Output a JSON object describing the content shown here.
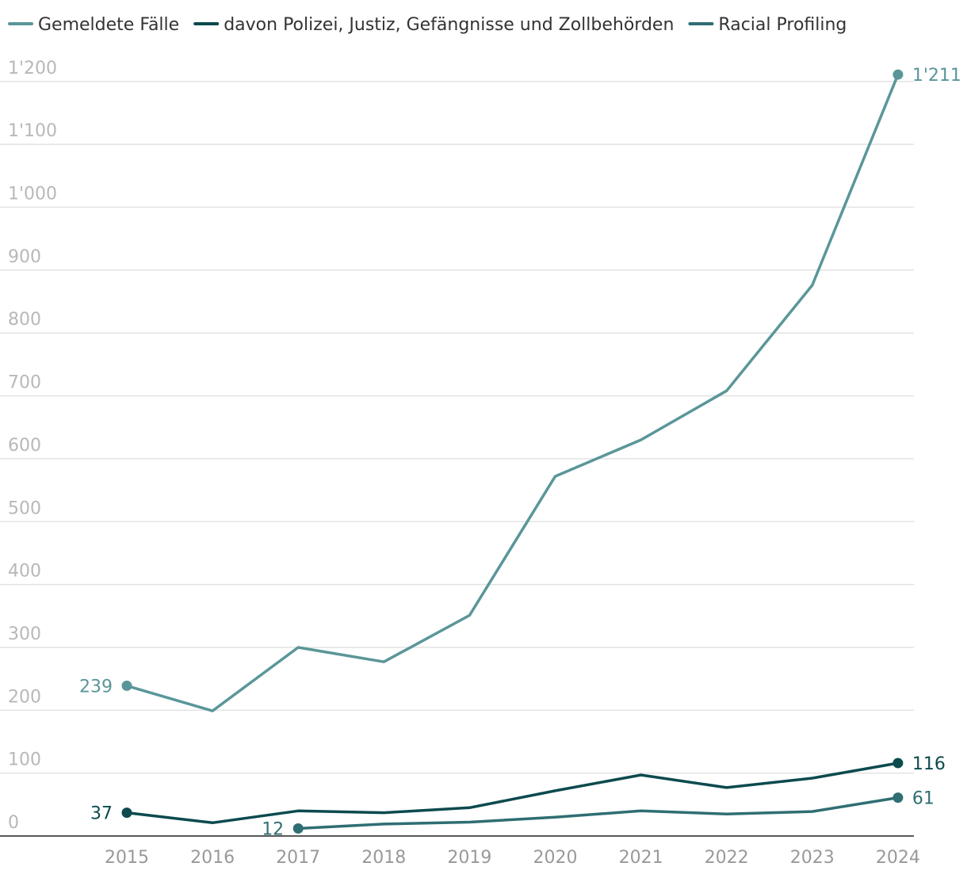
{
  "chart_data": {
    "type": "line",
    "title": "",
    "xlabel": "",
    "ylabel": "",
    "x": [
      "2015",
      "2016",
      "2017",
      "2018",
      "2019",
      "2020",
      "2021",
      "2022",
      "2023",
      "2024"
    ],
    "ylim": [
      0,
      1200
    ],
    "yticks": [
      0,
      100,
      200,
      300,
      400,
      500,
      600,
      700,
      800,
      900,
      1000,
      1100,
      1200
    ],
    "ytick_labels": [
      "0",
      "100",
      "200",
      "300",
      "400",
      "500",
      "600",
      "700",
      "800",
      "900",
      "1'000",
      "1'100",
      "1'200"
    ],
    "grid": true,
    "legend_position": "top-left",
    "series": [
      {
        "name": "Gemeldete Fälle",
        "color": "#5a9699",
        "values": [
          239,
          199,
          300,
          277,
          351,
          572,
          630,
          708,
          876,
          1211
        ],
        "start_label": "239",
        "end_label": "1'211"
      },
      {
        "name": "davon Polizei, Justiz, Gefängnisse und Zollbehörden",
        "color": "#0c4a4e",
        "values": [
          37,
          21,
          40,
          37,
          45,
          72,
          97,
          77,
          92,
          116
        ],
        "start_label": "37",
        "end_label": "116"
      },
      {
        "name": "Racial Profiling",
        "color": "#2f6e73",
        "values": [
          null,
          null,
          12,
          19,
          22,
          30,
          40,
          35,
          39,
          61
        ],
        "start_label": "12",
        "end_label": "61"
      }
    ]
  }
}
